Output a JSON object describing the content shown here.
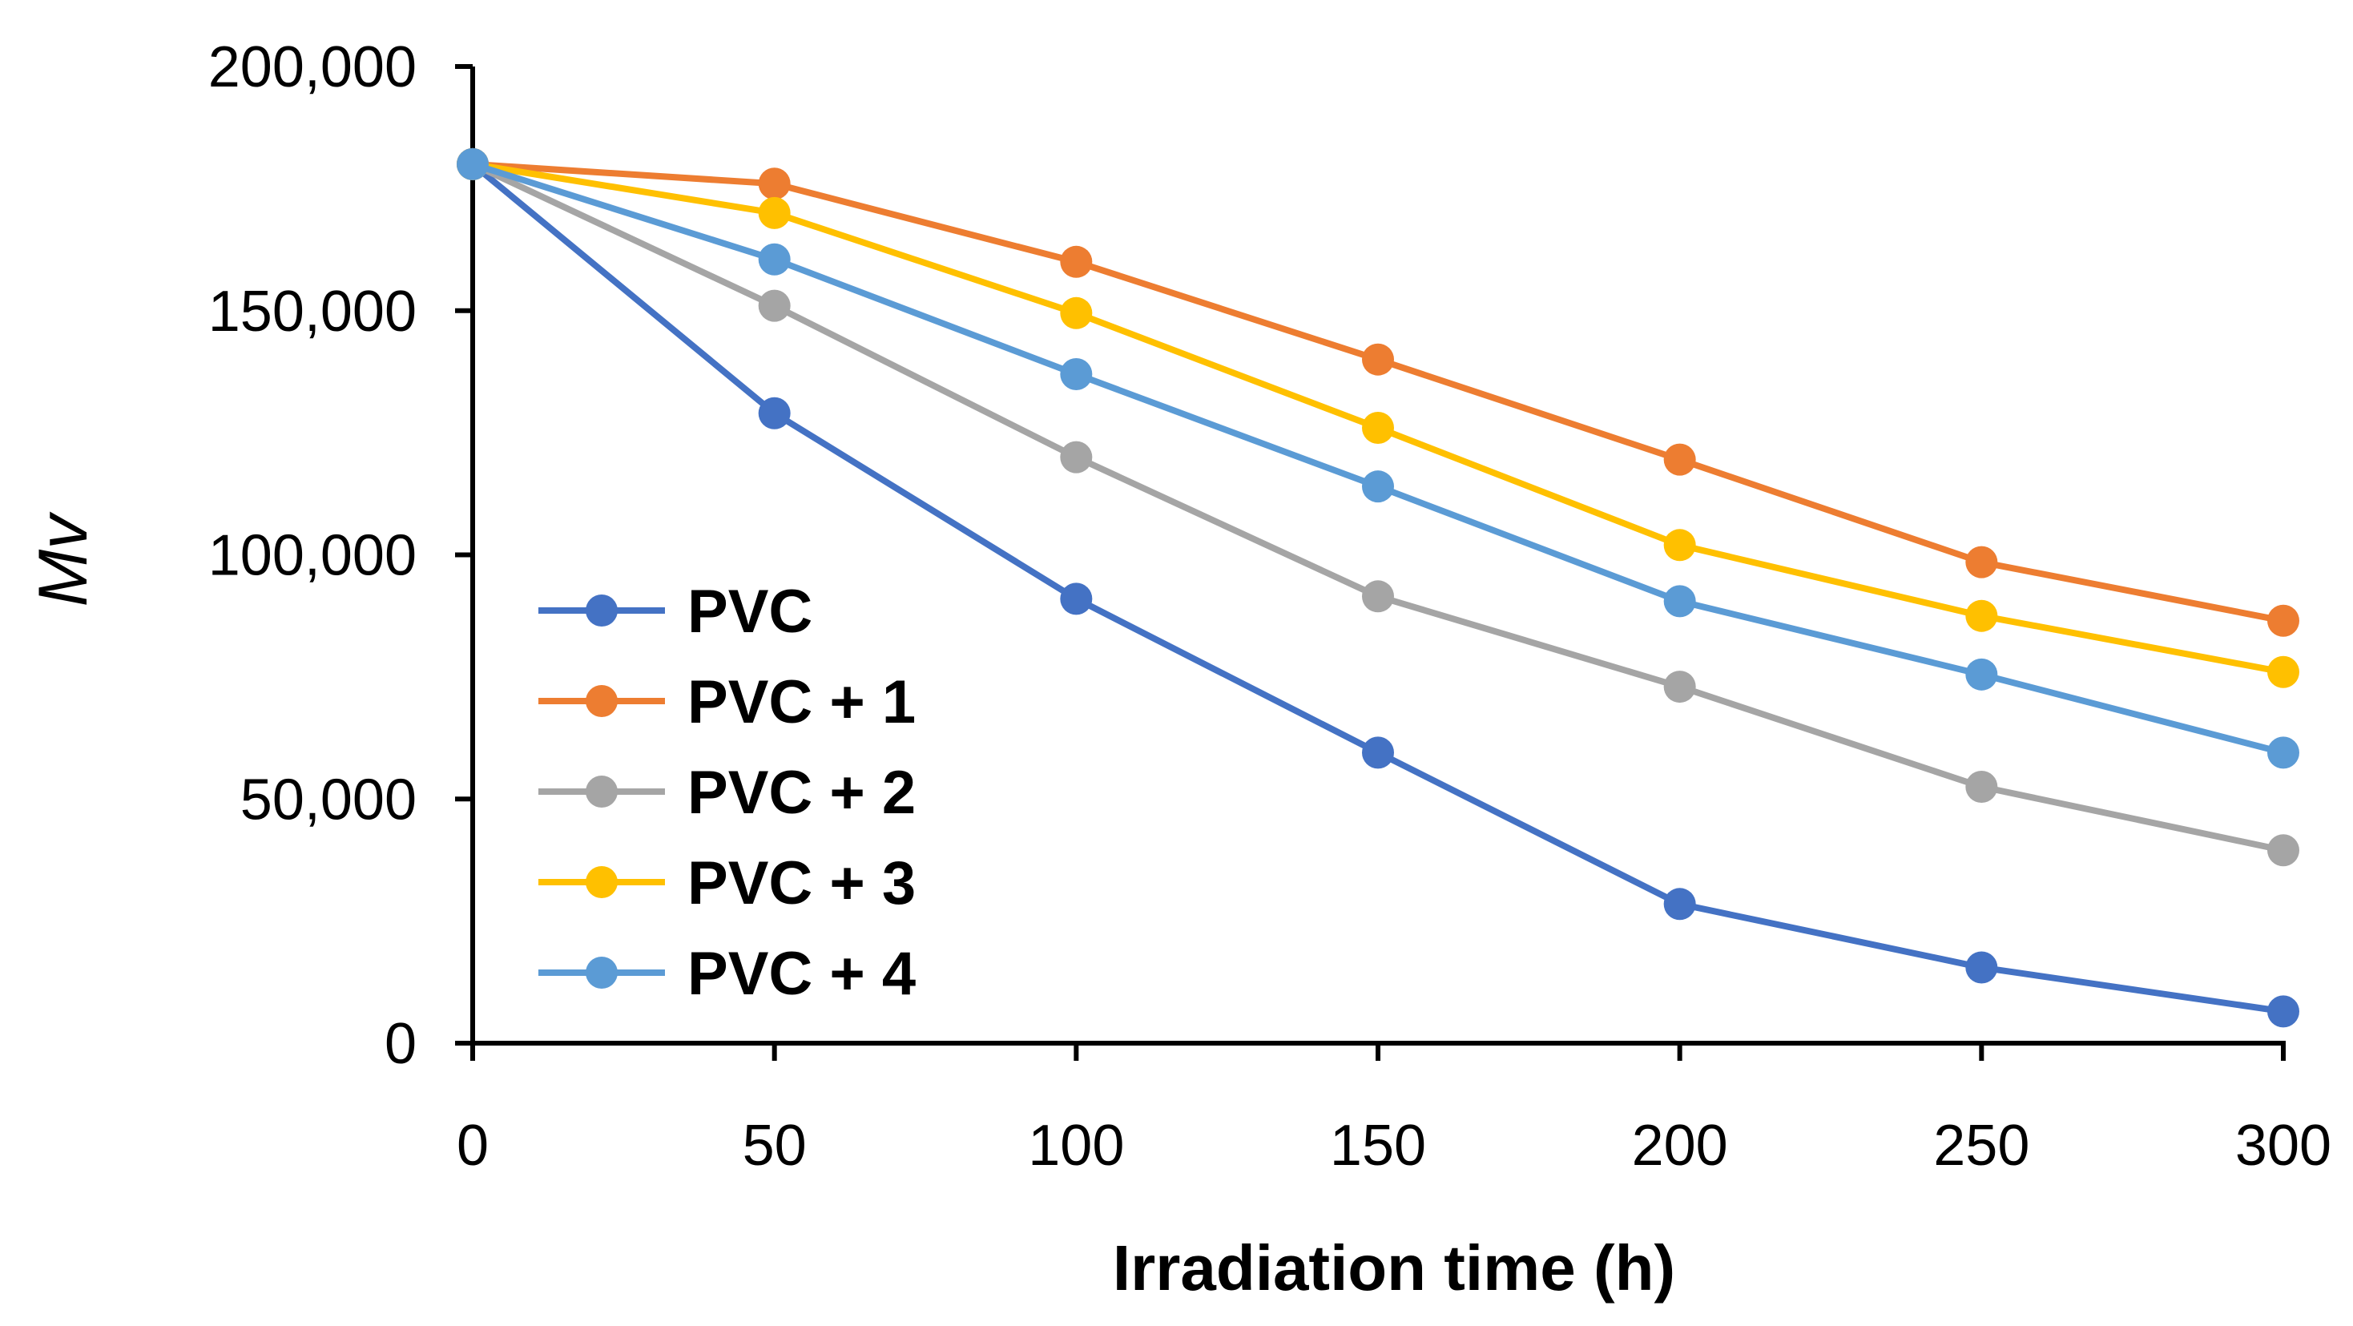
{
  "chart_data": {
    "type": "line",
    "title": "",
    "xlabel": "Irradiation time (h)",
    "ylabel": "Mv",
    "x": [
      0,
      50,
      100,
      150,
      200,
      250,
      300
    ],
    "x_tick_labels": [
      "0",
      "50",
      "100",
      "150",
      "200",
      "250",
      "300"
    ],
    "y_tick_labels": [
      "0",
      "50,000",
      "100,000",
      "150,000",
      "200,000"
    ],
    "y_ticks": [
      0,
      50000,
      100000,
      150000,
      200000
    ],
    "xlim": [
      0,
      300
    ],
    "ylim": [
      0,
      200000
    ],
    "grid": false,
    "legend_position": "bottom-left",
    "series": [
      {
        "name": "PVC",
        "color": "#4472C4",
        "values": [
          180000,
          129000,
          91000,
          59500,
          28500,
          15500,
          6500
        ]
      },
      {
        "name": "PVC + 1",
        "color": "#ED7D31",
        "values": [
          180000,
          176000,
          160000,
          140000,
          119500,
          98500,
          86500
        ]
      },
      {
        "name": "PVC + 2",
        "color": "#A5A5A5",
        "values": [
          180000,
          151000,
          120000,
          91500,
          73000,
          52500,
          39500
        ]
      },
      {
        "name": "PVC + 3",
        "color": "#FFC000",
        "values": [
          180000,
          170000,
          149500,
          126000,
          102000,
          87500,
          76000
        ]
      },
      {
        "name": "PVC + 4",
        "color": "#5B9BD5",
        "values": [
          180000,
          160500,
          137000,
          114000,
          90500,
          75500,
          59500
        ]
      }
    ]
  }
}
